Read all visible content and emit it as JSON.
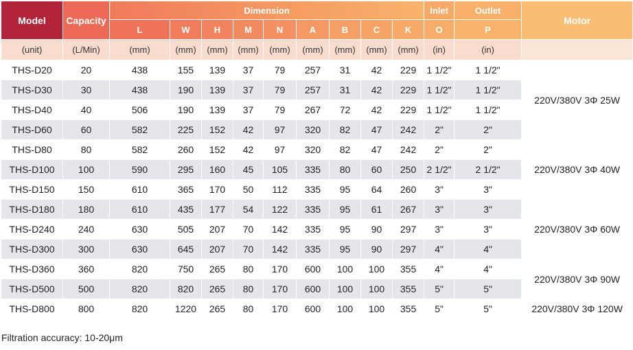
{
  "header": {
    "model": "Model",
    "capacity": "Capacity",
    "dimension": "Dimension",
    "inlet": "Inlet",
    "outlet": "Outlet",
    "motor": "Motor",
    "dims": [
      "L",
      "W",
      "H",
      "M",
      "N",
      "A",
      "B",
      "C",
      "K"
    ],
    "inlet_sub": "O",
    "outlet_sub": "P"
  },
  "units": {
    "model": "(unit)",
    "capacity": "(L/Min)",
    "dims": [
      "(mm)",
      "(mm)",
      "(mm)",
      "(mm)",
      "(mm)",
      "(mm)",
      "(mm)",
      "(mm)",
      "(mm)"
    ],
    "inlet": "(in)",
    "outlet": "(in)"
  },
  "rows": [
    {
      "model": "THS-D20",
      "capacity": "20",
      "dims": [
        "438",
        "155",
        "139",
        "37",
        "79",
        "257",
        "31",
        "42",
        "229"
      ],
      "inlet": "1 1/2\"",
      "outlet": "1 1/2\""
    },
    {
      "model": "THS-D30",
      "capacity": "30",
      "dims": [
        "438",
        "190",
        "139",
        "37",
        "79",
        "257",
        "31",
        "42",
        "229"
      ],
      "inlet": "1 1/2\"",
      "outlet": "1 1/2\""
    },
    {
      "model": "THS-D40",
      "capacity": "40",
      "dims": [
        "506",
        "190",
        "139",
        "37",
        "79",
        "267",
        "72",
        "42",
        "229"
      ],
      "inlet": "1 1/2\"",
      "outlet": "1 1/2\""
    },
    {
      "model": "THS-D60",
      "capacity": "60",
      "dims": [
        "582",
        "225",
        "152",
        "42",
        "97",
        "320",
        "82",
        "47",
        "242"
      ],
      "inlet": "2\"",
      "outlet": "2\""
    },
    {
      "model": "THS-D80",
      "capacity": "80",
      "dims": [
        "582",
        "260",
        "152",
        "42",
        "97",
        "320",
        "82",
        "47",
        "242"
      ],
      "inlet": "2\"",
      "outlet": "2\""
    },
    {
      "model": "THS-D100",
      "capacity": "100",
      "dims": [
        "590",
        "295",
        "160",
        "45",
        "105",
        "335",
        "80",
        "60",
        "250"
      ],
      "inlet": "2 1/2\"",
      "outlet": "2 1/2\""
    },
    {
      "model": "THS-D150",
      "capacity": "150",
      "dims": [
        "610",
        "365",
        "170",
        "50",
        "112",
        "335",
        "95",
        "64",
        "260"
      ],
      "inlet": "3\"",
      "outlet": "3\""
    },
    {
      "model": "THS-D180",
      "capacity": "180",
      "dims": [
        "610",
        "435",
        "177",
        "54",
        "122",
        "335",
        "95",
        "61",
        "267"
      ],
      "inlet": "3\"",
      "outlet": "3\""
    },
    {
      "model": "THS-D240",
      "capacity": "240",
      "dims": [
        "630",
        "505",
        "207",
        "70",
        "142",
        "335",
        "95",
        "90",
        "297"
      ],
      "inlet": "3\"",
      "outlet": "3\""
    },
    {
      "model": "THS-D300",
      "capacity": "300",
      "dims": [
        "630",
        "645",
        "207",
        "70",
        "142",
        "335",
        "95",
        "90",
        "297"
      ],
      "inlet": "4\"",
      "outlet": "4\""
    },
    {
      "model": "THS-D360",
      "capacity": "360",
      "dims": [
        "820",
        "750",
        "265",
        "80",
        "170",
        "600",
        "100",
        "100",
        "355"
      ],
      "inlet": "4\"",
      "outlet": "4\""
    },
    {
      "model": "THS-D500",
      "capacity": "500",
      "dims": [
        "820",
        "820",
        "265",
        "80",
        "170",
        "600",
        "100",
        "100",
        "355"
      ],
      "inlet": "5\"",
      "outlet": "5\""
    },
    {
      "model": "THS-D800",
      "capacity": "800",
      "dims": [
        "820",
        "1220",
        "265",
        "80",
        "170",
        "600",
        "100",
        "100",
        "355"
      ],
      "inlet": "5\"",
      "outlet": "5\""
    }
  ],
  "motor_groups": [
    {
      "label": "220V/380V 3Φ 25W",
      "rowspan": 4
    },
    {
      "label": "220V/380V 3Φ 40W",
      "rowspan": 3
    },
    {
      "label": "220V/380V 3Φ 60W",
      "rowspan": 3
    },
    {
      "label": "220V/380V 3Φ 90W",
      "rowspan": 2
    },
    {
      "label": "220V/380V 3Φ 120W",
      "rowspan": 1
    }
  ],
  "note": "Filtration accuracy: 10-20μm",
  "colors": {
    "model_header": "#b1243a",
    "capacity_header": "#ec6a55",
    "units_row": "#f9dccd",
    "row_shade": "#e4e6ec"
  }
}
